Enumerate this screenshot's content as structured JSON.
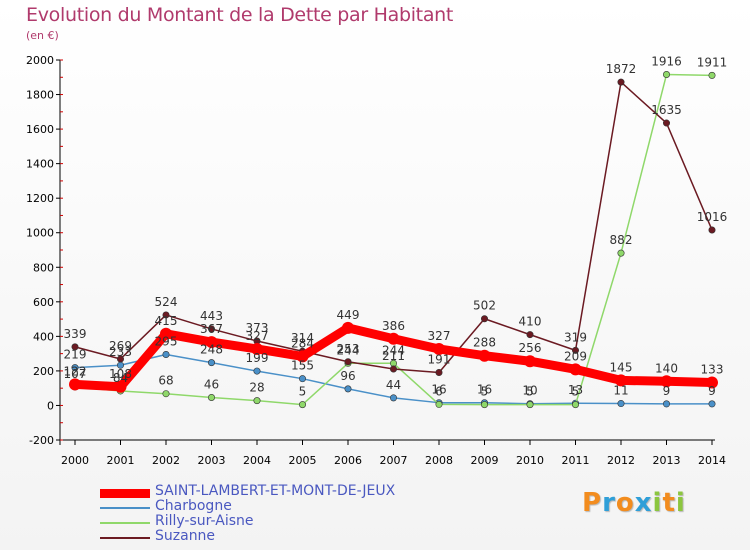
{
  "title": "Evolution du Montant de la Dette par Habitant",
  "subtitle": "(en €)",
  "logo": {
    "text": "Proxiti",
    "letters": [
      {
        "char": "P",
        "color": "#f28c1e"
      },
      {
        "char": "r",
        "color": "#2f9fd8"
      },
      {
        "char": "o",
        "color": "#f28c1e"
      },
      {
        "char": "x",
        "color": "#2f9fd8"
      },
      {
        "char": "i",
        "color": "#8cc63f"
      },
      {
        "char": "t",
        "color": "#f28c1e"
      },
      {
        "char": "i",
        "color": "#8cc63f"
      }
    ]
  },
  "chart_data": {
    "type": "line",
    "title": "Evolution du Montant de la Dette par Habitant",
    "subtitle": "(en €)",
    "x": [
      "2000",
      "2001",
      "2002",
      "2003",
      "2004",
      "2005",
      "2006",
      "2007",
      "2008",
      "2009",
      "2010",
      "2011",
      "2012",
      "2013",
      "2014"
    ],
    "ylim": [
      -200,
      2000
    ],
    "yticks": [
      -200,
      0,
      200,
      400,
      600,
      800,
      1000,
      1200,
      1400,
      1600,
      1800,
      2000
    ],
    "grid": false,
    "legend_position": "bottom-left",
    "series": [
      {
        "name": "SAINT-LAMBERT-ET-MONT-DE-JEUX",
        "color": "#ff0000",
        "emphasis": true,
        "values": [
          122,
          108,
          415,
          367,
          327,
          284,
          449,
          386,
          327,
          288,
          256,
          209,
          145,
          140,
          133
        ]
      },
      {
        "name": "Charbogne",
        "color": "#4a90c8",
        "values": [
          219,
          233,
          295,
          248,
          199,
          155,
          96,
          44,
          16,
          16,
          10,
          13,
          11,
          9,
          9
        ]
      },
      {
        "name": "Rilly-sur-Aisne",
        "color": "#8fd86a",
        "values": [
          107,
          84,
          68,
          46,
          28,
          5,
          244,
          244,
          6,
          5,
          5,
          5,
          882,
          1916,
          1911
        ]
      },
      {
        "name": "Suzanne",
        "color": "#6b1a22",
        "values": [
          339,
          269,
          524,
          443,
          373,
          314,
          253,
          211,
          191,
          502,
          410,
          319,
          1872,
          1635,
          1016
        ]
      }
    ]
  }
}
